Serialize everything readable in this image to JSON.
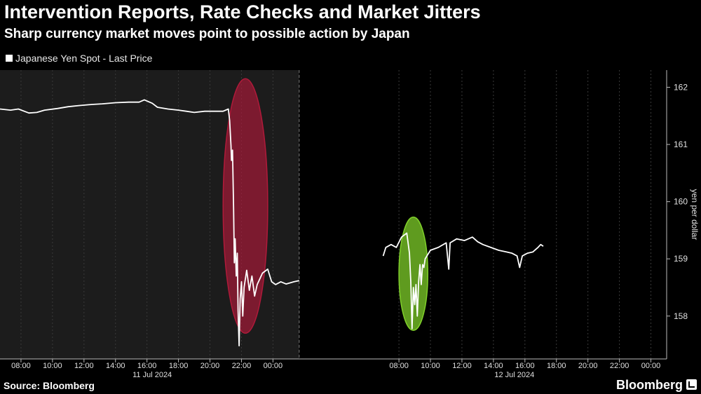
{
  "header": {
    "title": "Intervention Reports, Rate Checks and Market Jitters",
    "subtitle": "Sharp currency market moves point to possible action by Japan"
  },
  "footer": {
    "source": "Source: Bloomberg",
    "brand": "Bloomberg"
  },
  "colors": {
    "background": "#000000",
    "shaded_day": "#1c1c1c",
    "line": "#ffffff",
    "highlight_red": "#b01a3a",
    "highlight_green": "#7fcf2a",
    "grid": "#3a3a3a"
  },
  "chart_data": {
    "type": "line",
    "title": "Intervention Reports, Rate Checks and Market Jitters",
    "subtitle": "Sharp currency market moves point to possible action by Japan",
    "ylabel": "yen per dollar",
    "y_axis_position": "right",
    "ylim": [
      157.25,
      162.3
    ],
    "yticks": [
      158,
      159,
      160,
      161,
      162
    ],
    "grid": "vertical dashed",
    "legend_placement": "top-left",
    "xlim": [
      "2024-07-11 06:40",
      "2024-07-13 01:00"
    ],
    "x_tick_labels": [
      "08:00",
      "10:00",
      "12:00",
      "14:00",
      "16:00",
      "18:00",
      "20:00",
      "22:00",
      "00:00",
      "08:00",
      "10:00",
      "12:00",
      "14:00",
      "16:00",
      "18:00",
      "20:00",
      "22:00",
      "00:00"
    ],
    "x_ticks": [
      "2024-07-11 08:00",
      "2024-07-11 10:00",
      "2024-07-11 12:00",
      "2024-07-11 14:00",
      "2024-07-11 16:00",
      "2024-07-11 18:00",
      "2024-07-11 20:00",
      "2024-07-11 22:00",
      "2024-07-12 00:00",
      "2024-07-12 08:00",
      "2024-07-12 10:00",
      "2024-07-12 12:00",
      "2024-07-12 14:00",
      "2024-07-12 16:00",
      "2024-07-12 18:00",
      "2024-07-12 20:00",
      "2024-07-12 22:00",
      "2024-07-13 00:00"
    ],
    "date_labels": [
      {
        "label": "11 Jul 2024",
        "at": "2024-07-11 16:20"
      },
      {
        "label": "12 Jul 2024",
        "at": "2024-07-12 15:20"
      }
    ],
    "shaded_period": [
      "2024-07-11 06:40",
      "2024-07-12 01:40"
    ],
    "highlights": [
      {
        "color": "red",
        "from": "2024-07-11 20:50",
        "to": "2024-07-11 23:40",
        "y_range": [
          157.7,
          162.15
        ]
      },
      {
        "color": "green",
        "from": "2024-07-12 08:00",
        "to": "2024-07-12 09:50",
        "y_range": [
          157.75,
          159.73
        ]
      }
    ],
    "series": [
      {
        "name": "Japanese Yen Spot - Last Price",
        "segments": [
          [
            [
              "2024-07-11 06:40",
              161.62
            ],
            [
              "2024-07-11 07:20",
              161.6
            ],
            [
              "2024-07-11 07:50",
              161.62
            ],
            [
              "2024-07-11 08:30",
              161.55
            ],
            [
              "2024-07-11 09:00",
              161.56
            ],
            [
              "2024-07-11 09:30",
              161.6
            ],
            [
              "2024-07-11 10:20",
              161.63
            ],
            [
              "2024-07-11 11:00",
              161.66
            ],
            [
              "2024-07-11 11:40",
              161.68
            ],
            [
              "2024-07-11 12:30",
              161.7
            ],
            [
              "2024-07-11 13:10",
              161.71
            ],
            [
              "2024-07-11 14:00",
              161.73
            ],
            [
              "2024-07-11 14:50",
              161.74
            ],
            [
              "2024-07-11 15:30",
              161.74
            ],
            [
              "2024-07-11 15:50",
              161.78
            ],
            [
              "2024-07-11 16:20",
              161.72
            ],
            [
              "2024-07-11 16:40",
              161.65
            ],
            [
              "2024-07-11 17:20",
              161.62
            ],
            [
              "2024-07-11 18:00",
              161.6
            ],
            [
              "2024-07-11 18:30",
              161.58
            ],
            [
              "2024-07-11 19:00",
              161.56
            ],
            [
              "2024-07-11 19:40",
              161.58
            ],
            [
              "2024-07-11 20:20",
              161.58
            ],
            [
              "2024-07-11 20:50",
              161.58
            ],
            [
              "2024-07-11 21:10",
              161.62
            ],
            [
              "2024-07-11 21:15",
              161.42
            ],
            [
              "2024-07-11 21:20",
              160.98
            ],
            [
              "2024-07-11 21:22",
              160.72
            ],
            [
              "2024-07-11 21:26",
              160.9
            ],
            [
              "2024-07-11 21:30",
              159.9
            ],
            [
              "2024-07-11 21:33",
              158.93
            ],
            [
              "2024-07-11 21:36",
              159.35
            ],
            [
              "2024-07-11 21:40",
              158.7
            ],
            [
              "2024-07-11 21:44",
              159.1
            ],
            [
              "2024-07-11 21:47",
              158.1
            ],
            [
              "2024-07-11 21:51",
              157.48
            ],
            [
              "2024-07-11 21:55",
              158.3
            ],
            [
              "2024-07-11 22:00",
              158.6
            ],
            [
              "2024-07-11 22:05",
              158.0
            ],
            [
              "2024-07-11 22:10",
              158.5
            ],
            [
              "2024-07-11 22:20",
              158.8
            ],
            [
              "2024-07-11 22:30",
              158.45
            ],
            [
              "2024-07-11 22:40",
              158.7
            ],
            [
              "2024-07-11 22:50",
              158.35
            ],
            [
              "2024-07-11 23:00",
              158.55
            ],
            [
              "2024-07-11 23:20",
              158.75
            ],
            [
              "2024-07-11 23:40",
              158.82
            ],
            [
              "2024-07-11 23:55",
              158.6
            ],
            [
              "2024-07-12 00:10",
              158.55
            ],
            [
              "2024-07-12 00:30",
              158.6
            ],
            [
              "2024-07-12 00:50",
              158.56
            ],
            [
              "2024-07-12 01:20",
              158.6
            ],
            [
              "2024-07-12 01:40",
              158.62
            ]
          ],
          [
            [
              "2024-07-12 07:00",
              159.05
            ],
            [
              "2024-07-12 07:10",
              159.2
            ],
            [
              "2024-07-12 07:30",
              159.25
            ],
            [
              "2024-07-12 07:50",
              159.2
            ],
            [
              "2024-07-12 08:10",
              159.38
            ],
            [
              "2024-07-12 08:30",
              159.45
            ],
            [
              "2024-07-12 08:40",
              159.1
            ],
            [
              "2024-07-12 08:45",
              158.6
            ],
            [
              "2024-07-12 08:50",
              157.78
            ],
            [
              "2024-07-12 08:55",
              158.5
            ],
            [
              "2024-07-12 09:00",
              158.2
            ],
            [
              "2024-07-12 09:05",
              158.55
            ],
            [
              "2024-07-12 09:10",
              158.0
            ],
            [
              "2024-07-12 09:15",
              158.6
            ],
            [
              "2024-07-12 09:20",
              158.9
            ],
            [
              "2024-07-12 09:25",
              158.55
            ],
            [
              "2024-07-12 09:30",
              158.9
            ],
            [
              "2024-07-12 09:35",
              158.85
            ],
            [
              "2024-07-12 09:40",
              159.0
            ],
            [
              "2024-07-12 10:00",
              159.15
            ],
            [
              "2024-07-12 10:30",
              159.2
            ],
            [
              "2024-07-12 11:00",
              159.28
            ],
            [
              "2024-07-12 11:10",
              158.82
            ],
            [
              "2024-07-12 11:15",
              159.28
            ],
            [
              "2024-07-12 11:40",
              159.35
            ],
            [
              "2024-07-12 12:10",
              159.32
            ],
            [
              "2024-07-12 12:40",
              159.38
            ],
            [
              "2024-07-12 13:00",
              159.3
            ],
            [
              "2024-07-12 13:20",
              159.25
            ],
            [
              "2024-07-12 13:50",
              159.2
            ],
            [
              "2024-07-12 14:20",
              159.15
            ],
            [
              "2024-07-12 14:50",
              159.12
            ],
            [
              "2024-07-12 15:10",
              159.1
            ],
            [
              "2024-07-12 15:30",
              159.05
            ],
            [
              "2024-07-12 15:40",
              158.85
            ],
            [
              "2024-07-12 15:50",
              159.05
            ],
            [
              "2024-07-12 16:10",
              159.1
            ],
            [
              "2024-07-12 16:30",
              159.12
            ],
            [
              "2024-07-12 16:50",
              159.2
            ],
            [
              "2024-07-12 17:00",
              159.25
            ],
            [
              "2024-07-12 17:10",
              159.22
            ]
          ]
        ]
      }
    ]
  }
}
